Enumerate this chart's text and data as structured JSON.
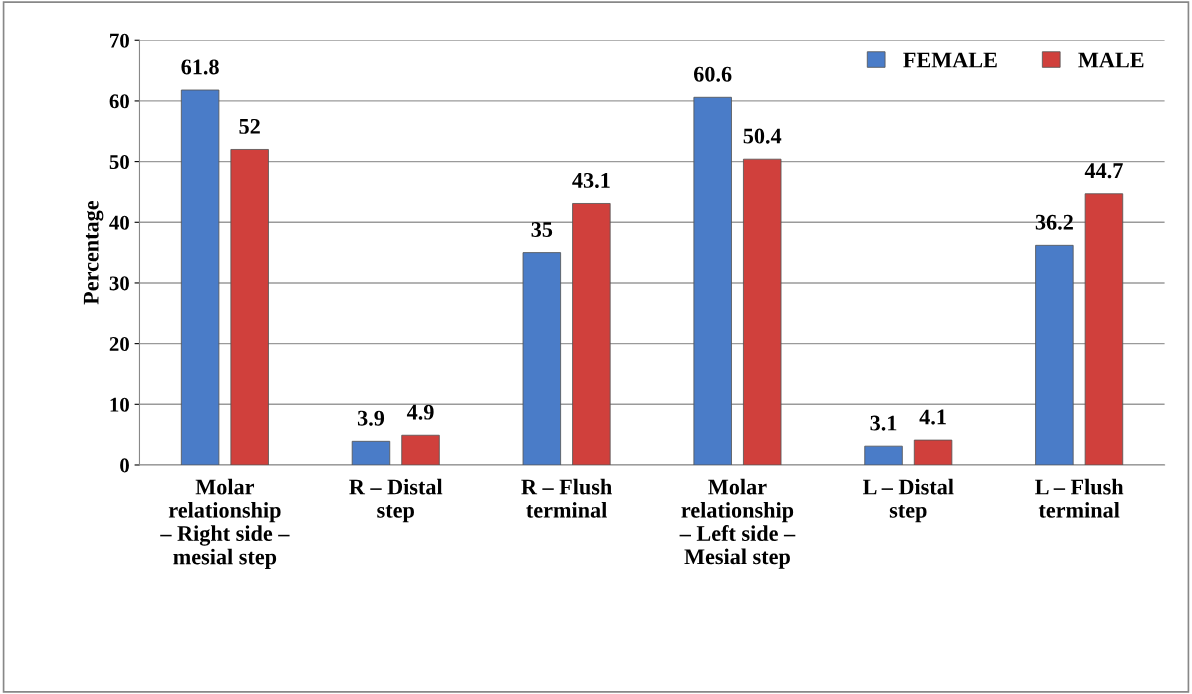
{
  "chart_data": {
    "type": "bar",
    "ylabel": "Percentage",
    "categories": [
      "Molar\nrelationship\n– Right side –\nmesial step",
      "R – Distal\nstep",
      "R – Flush\nterminal",
      "Molar\nrelationship\n– Left side –\nMesial step",
      "L – Distal\nstep",
      "L – Flush\nterminal"
    ],
    "series": [
      {
        "name": "FEMALE",
        "color": "#4a7cc8",
        "values": [
          61.8,
          3.9,
          35,
          60.6,
          3.1,
          36.2
        ]
      },
      {
        "name": "MALE",
        "color": "#d0403c",
        "values": [
          52,
          4.9,
          43.1,
          50.4,
          4.1,
          44.7
        ]
      }
    ],
    "ylim": [
      0,
      70
    ],
    "yticks": [
      0,
      10,
      20,
      30,
      40,
      50,
      60,
      70
    ],
    "grid": "y",
    "legend": "top right",
    "data_labels": true
  }
}
